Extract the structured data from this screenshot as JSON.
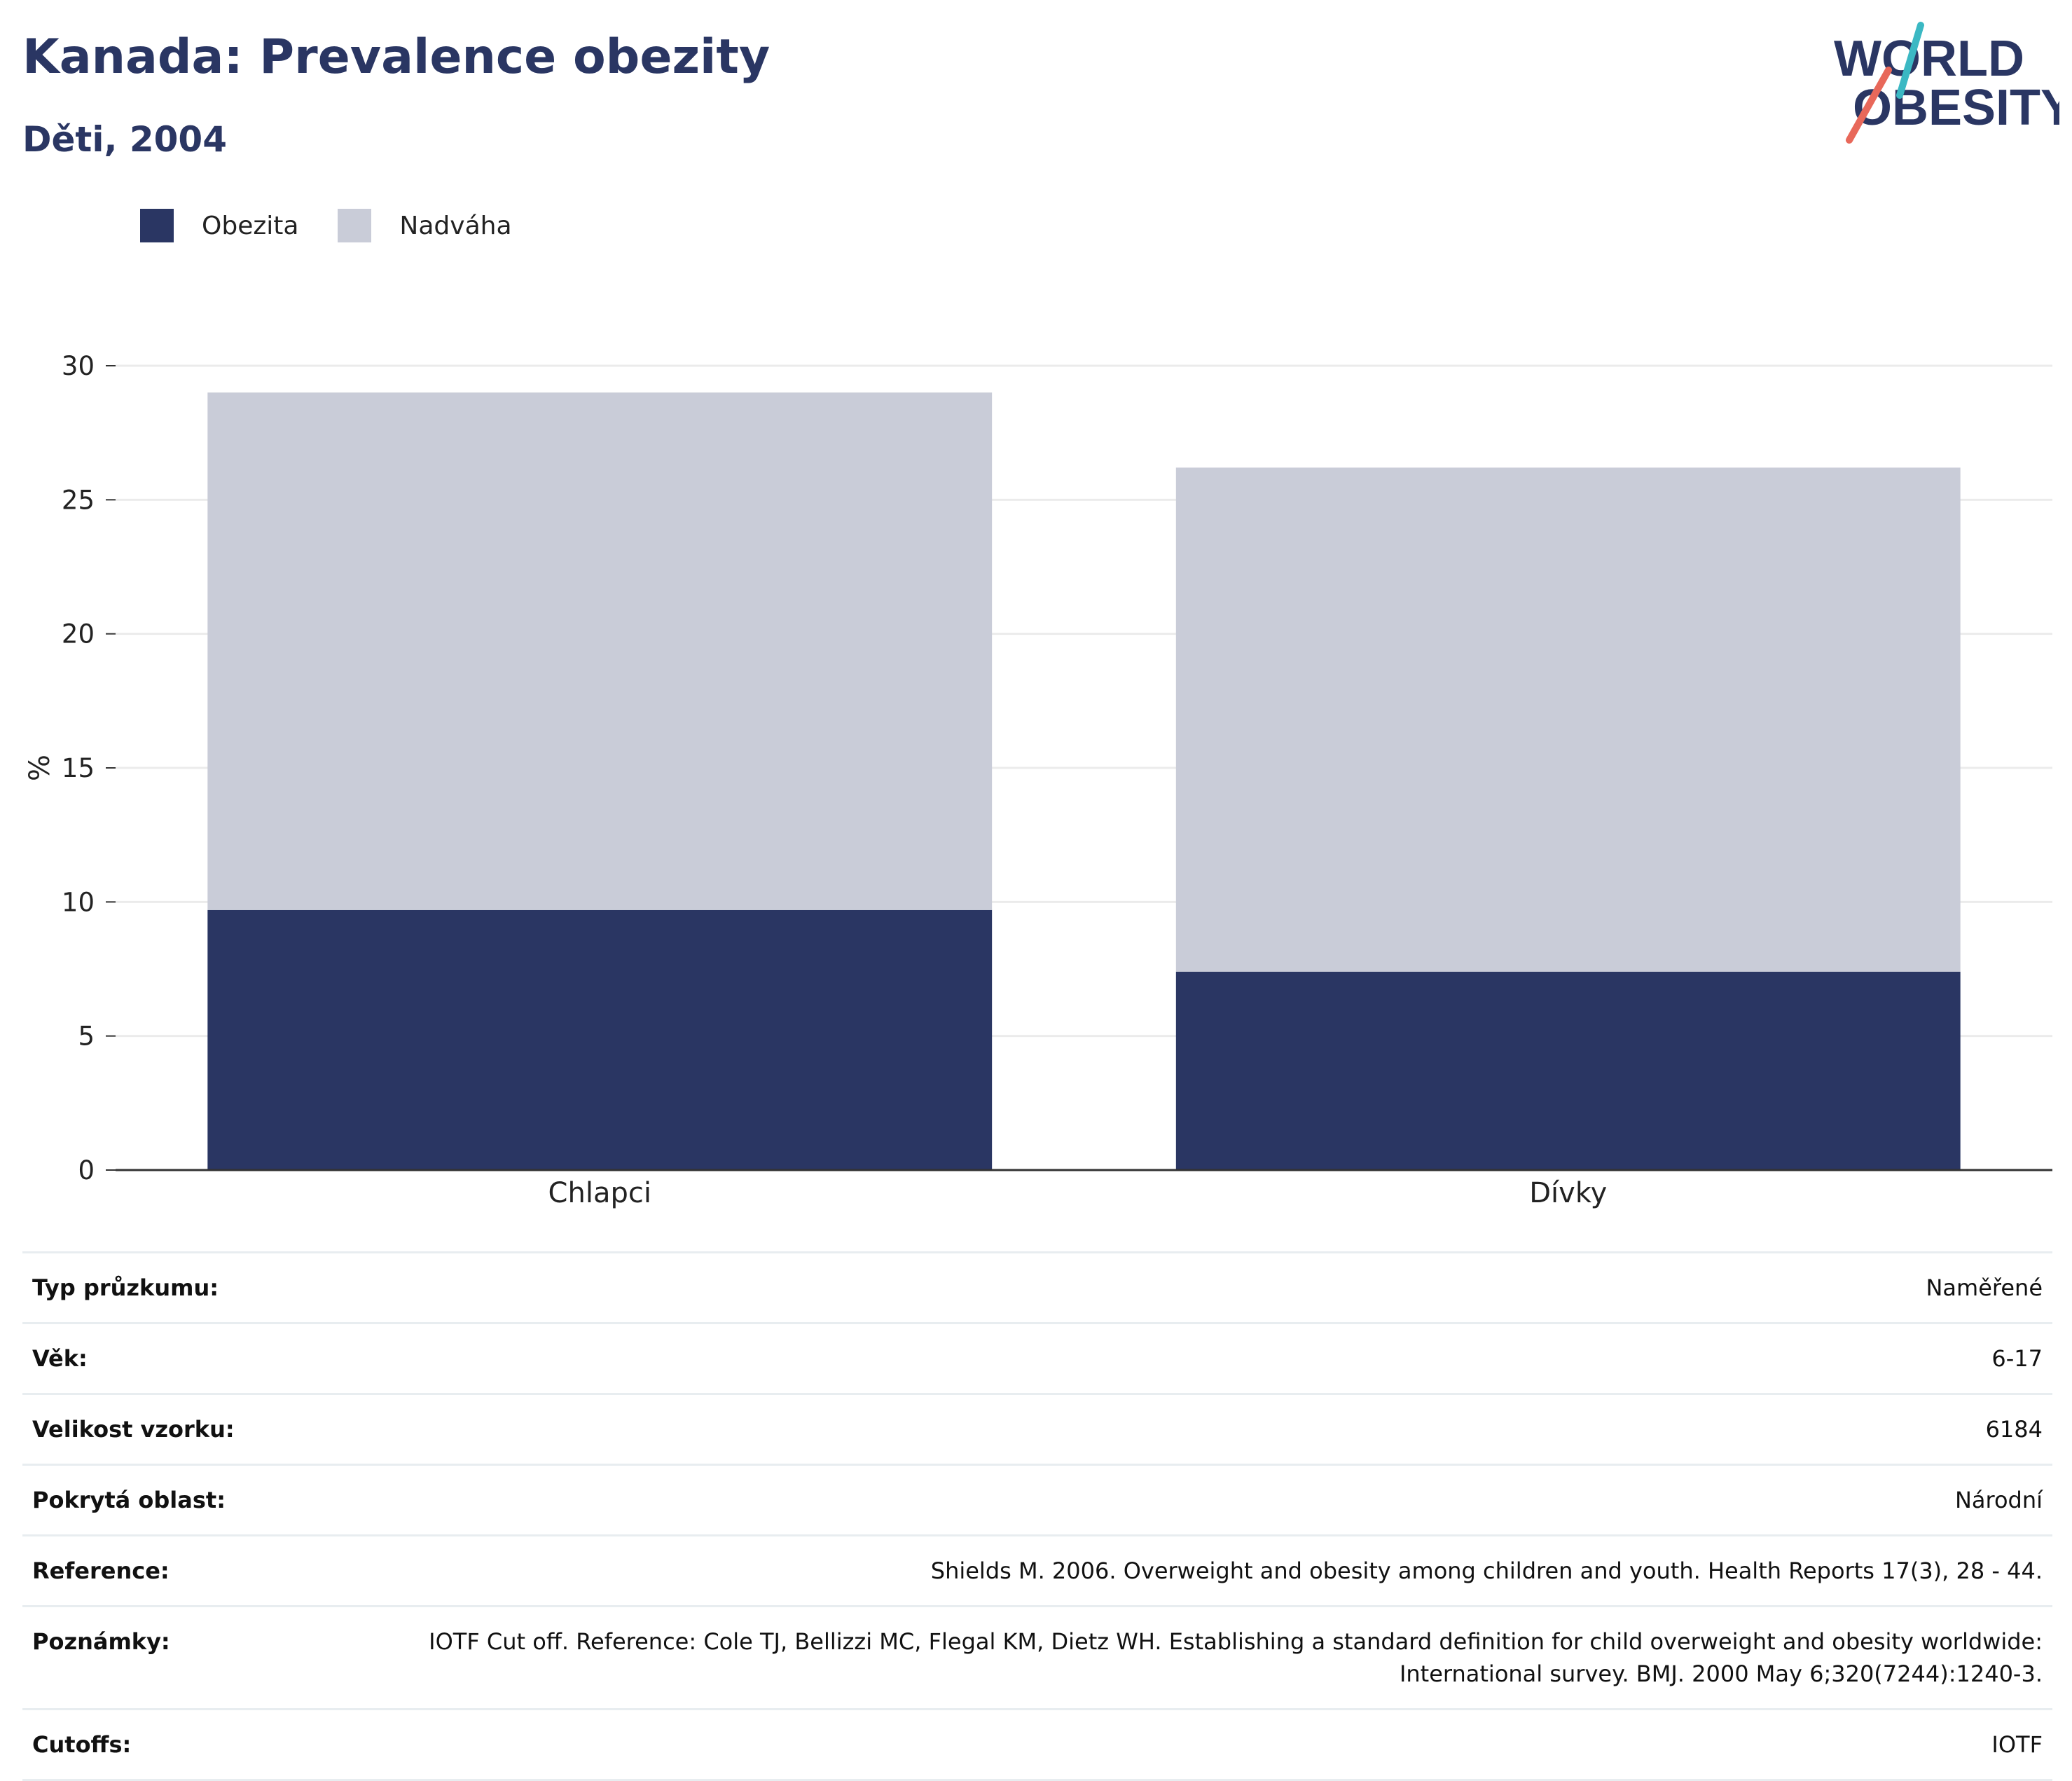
{
  "header": {
    "title": "Kanada: Prevalence obezity",
    "subtitle": "Děti, 2004"
  },
  "logo": {
    "line1": "WORLD",
    "line2": "OBESITY",
    "colors": {
      "text": "#2a3663",
      "accent_teal": "#3bb8c3",
      "accent_red": "#e8685a"
    }
  },
  "legend": [
    {
      "label": "Obezita",
      "color": "#2a3663"
    },
    {
      "label": "Nadváha",
      "color": "#c9ccd8"
    }
  ],
  "chart_data": {
    "type": "bar",
    "stacked": true,
    "categories": [
      "Chlapci",
      "Dívky"
    ],
    "series": [
      {
        "name": "Obezita",
        "values": [
          9.7,
          7.4
        ],
        "color": "#2a3663"
      },
      {
        "name": "Nadváha",
        "values": [
          19.3,
          18.8
        ],
        "color": "#c9ccd8"
      }
    ],
    "ylabel": "%",
    "ylim": [
      0,
      30
    ],
    "yticks": [
      0,
      5,
      10,
      15,
      20,
      25,
      30
    ],
    "grid": true,
    "legend_position": "top-left"
  },
  "info": [
    {
      "key": "Typ průzkumu:",
      "value": "Naměřené"
    },
    {
      "key": "Věk:",
      "value": "6-17"
    },
    {
      "key": "Velikost vzorku:",
      "value": "6184"
    },
    {
      "key": "Pokrytá oblast:",
      "value": "Národní"
    },
    {
      "key": "Reference:",
      "value": "Shields M. 2006. Overweight and obesity among children and youth. Health Reports 17(3), 28 - 44."
    },
    {
      "key": "Poznámky:",
      "value": "IOTF Cut off. Reference: Cole TJ, Bellizzi MC, Flegal KM, Dietz WH. Establishing a standard definition for child overweight and obesity worldwide: International survey. BMJ. 2000 May 6;320(7244):1240-3."
    },
    {
      "key": "Cutoffs:",
      "value": "IOTF"
    }
  ]
}
